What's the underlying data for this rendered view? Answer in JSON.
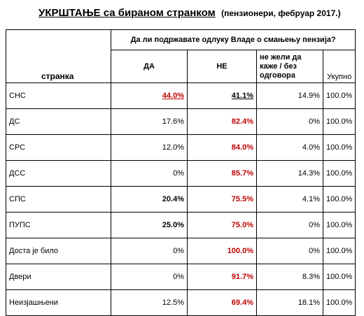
{
  "title": {
    "main": "УКРШТАЊЕ са бираном странком",
    "sub": "(пензионери, фебруар 2017.)"
  },
  "header": {
    "question": "Да ли подржавате одлуку Владе о смањењу пензија?",
    "party_label": "странка",
    "col_yes": "ДА",
    "col_no": "НЕ",
    "col_other": "не жели да каже / без одговора",
    "col_total": "Укупно"
  },
  "rows": [
    {
      "party": "СНС",
      "yes": "44.0%",
      "no": "41.1%",
      "other": "14.9%",
      "total": "100.0%"
    },
    {
      "party": "ДС",
      "yes": "17.6%",
      "no": "82.4%",
      "other": "0%",
      "total": "100.0%"
    },
    {
      "party": "СРС",
      "yes": "12.0%",
      "no": "84.0%",
      "other": "4.0%",
      "total": "100.0%"
    },
    {
      "party": "ДСС",
      "yes": "0%",
      "no": "85.7%",
      "other": "14.3%",
      "total": "100.0%"
    },
    {
      "party": "СПС",
      "yes": "20.4%",
      "no": "75.5%",
      "other": "4.1%",
      "total": "100.0%"
    },
    {
      "party": "ПУПС",
      "yes": "25.0%",
      "no": "75.0%",
      "other": "0%",
      "total": "100.0%"
    },
    {
      "party": "Доста је било",
      "yes": "0%",
      "no": "100.0%",
      "other": "0%",
      "total": "100.0%"
    },
    {
      "party": "Двери",
      "yes": "0%",
      "no": "91.7%",
      "other": "8.3%",
      "total": "100.0%"
    },
    {
      "party": "Неизјашњени",
      "yes": "12.5%",
      "no": "69.4%",
      "other": "18.1%",
      "total": "100.0%"
    }
  ],
  "colors": {
    "highlight": "#c00000",
    "text": "#000000",
    "background": "#ffffff"
  }
}
